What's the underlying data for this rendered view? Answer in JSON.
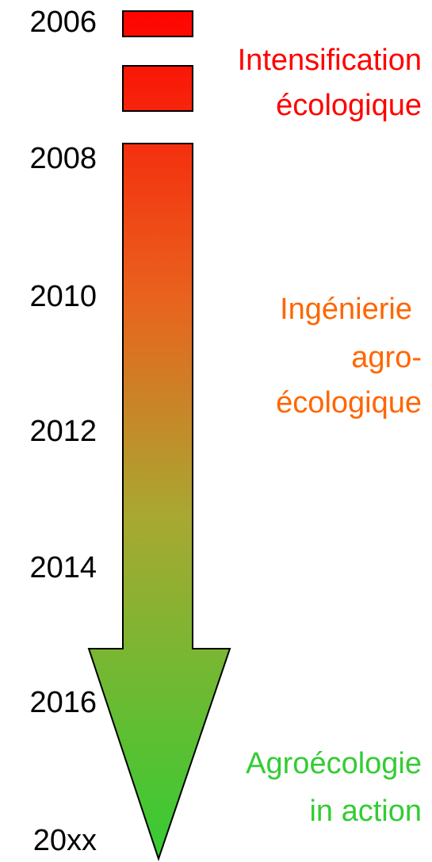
{
  "years": [
    "2006",
    "2008",
    "2010",
    "2012",
    "2014",
    "2016",
    "20xx"
  ],
  "phases": [
    {
      "lines": [
        "Intensification",
        "écologique"
      ]
    },
    {
      "lines": [
        "Ingénierie",
        "agro-",
        "écologique"
      ]
    },
    {
      "lines": [
        "Agroécologie",
        "in action"
      ]
    }
  ]
}
